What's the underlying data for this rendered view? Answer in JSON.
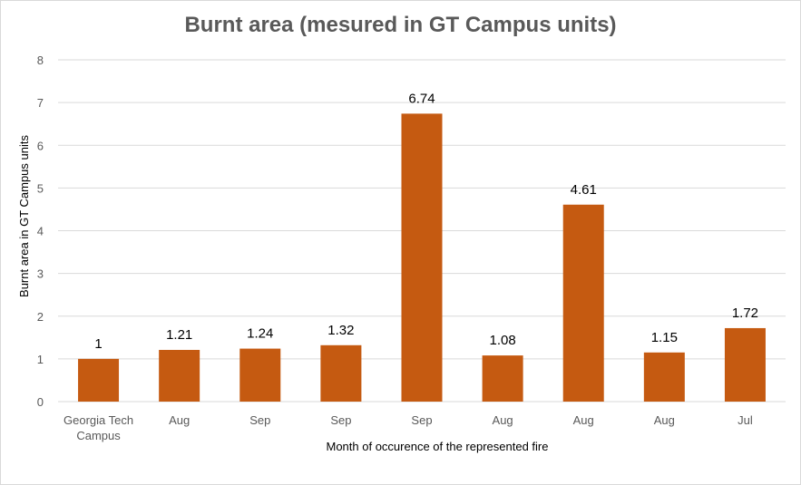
{
  "chart_data": {
    "type": "bar",
    "title": "Burnt area (mesured in GT Campus units)",
    "xlabel": "Month of occurence of the represented fire",
    "ylabel": "Burnt area in GT Campus units",
    "categories": [
      "Georgia Tech Campus",
      "Aug",
      "Sep",
      "Sep",
      "Sep",
      "Aug",
      "Aug",
      "Aug",
      "Jul"
    ],
    "category_lines": [
      [
        "Georgia Tech",
        "Campus"
      ],
      [
        "Aug"
      ],
      [
        "Sep"
      ],
      [
        "Sep"
      ],
      [
        "Sep"
      ],
      [
        "Aug"
      ],
      [
        "Aug"
      ],
      [
        "Aug"
      ],
      [
        "Jul"
      ]
    ],
    "values": [
      1,
      1.21,
      1.24,
      1.32,
      6.74,
      1.08,
      4.61,
      1.15,
      1.72
    ],
    "data_labels": [
      "1",
      "1.21",
      "1.24",
      "1.32",
      "6.74",
      "1.08",
      "4.61",
      "1.15",
      "1.72"
    ],
    "ylim": [
      0,
      8
    ],
    "yticks": [
      "0",
      "1",
      "2",
      "3",
      "4",
      "5",
      "6",
      "7",
      "8"
    ],
    "grid": true,
    "legend": "none",
    "bar_color": "#c55a11",
    "grid_color": "#d9d9d9"
  }
}
